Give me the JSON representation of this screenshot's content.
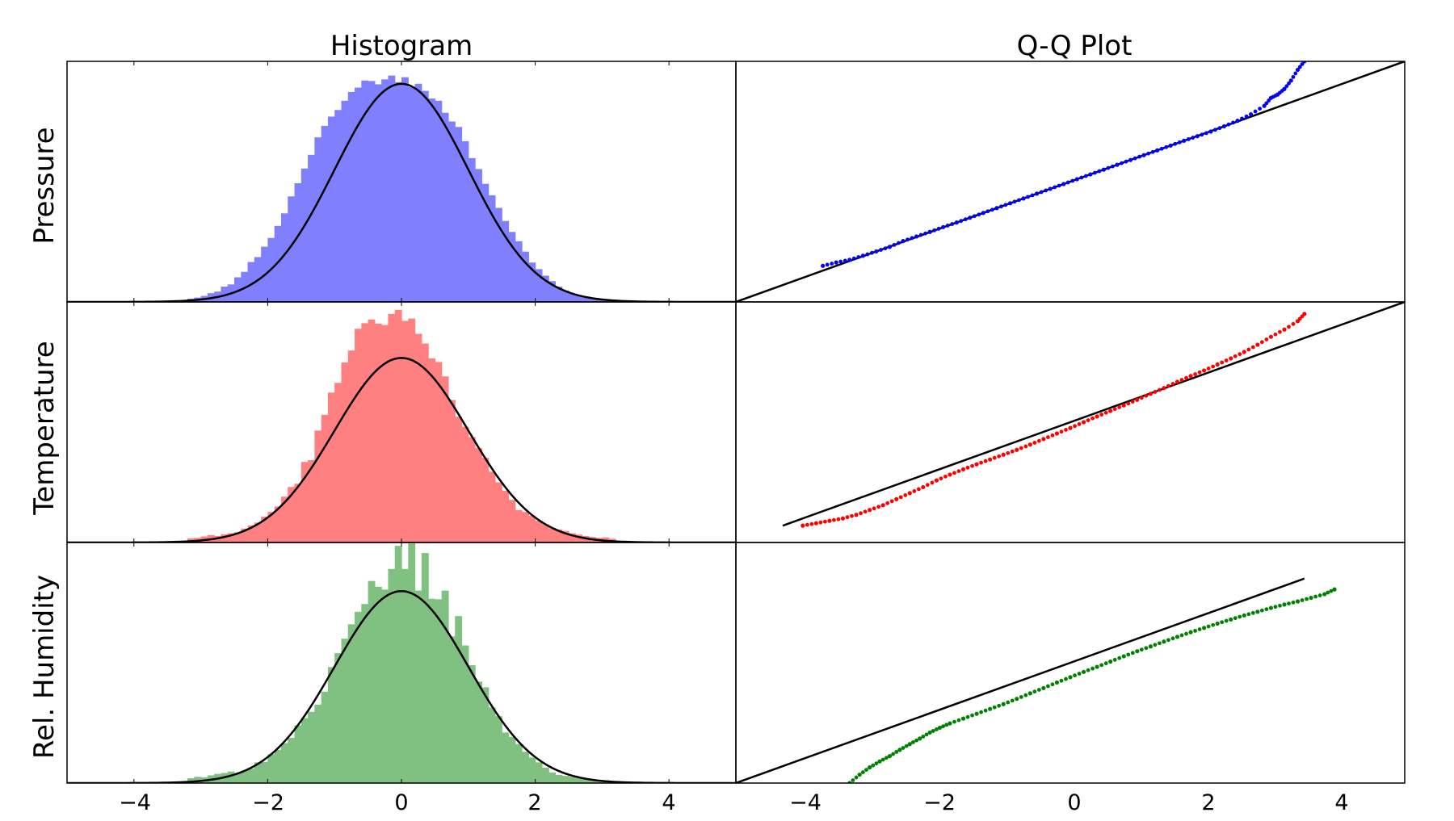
{
  "figure": {
    "column_titles": [
      "Histogram",
      "Q-Q Plot"
    ],
    "row_labels": [
      "Pressure",
      "Temperature",
      "Rel. Humidity"
    ],
    "x_tick_labels": [
      "−4",
      "−2",
      "0",
      "2",
      "4"
    ]
  },
  "chart_data": [
    {
      "type": "histogram",
      "panel": "Pressure / Histogram",
      "color": "#8080ff",
      "xlim": [
        -5,
        5
      ],
      "xticks": [
        -4,
        -2,
        0,
        2,
        4
      ],
      "bin_centers": [
        -3.15,
        -3.05,
        -2.95,
        -2.85,
        -2.75,
        -2.65,
        -2.55,
        -2.45,
        -2.35,
        -2.25,
        -2.15,
        -2.05,
        -1.95,
        -1.85,
        -1.75,
        -1.65,
        -1.55,
        -1.45,
        -1.35,
        -1.25,
        -1.15,
        -1.05,
        -0.95,
        -0.85,
        -0.75,
        -0.65,
        -0.55,
        -0.45,
        -0.35,
        -0.25,
        -0.15,
        -0.05,
        0.05,
        0.15,
        0.25,
        0.35,
        0.45,
        0.55,
        0.65,
        0.75,
        0.85,
        0.95,
        1.05,
        1.15,
        1.25,
        1.35,
        1.45,
        1.55,
        1.65,
        1.75,
        1.85,
        1.95,
        2.05,
        2.15,
        2.25,
        2.35,
        2.45,
        2.55,
        2.65,
        2.75,
        2.85,
        2.95,
        3.05,
        3.15
      ],
      "density": [
        0.006,
        0.008,
        0.011,
        0.016,
        0.019,
        0.028,
        0.032,
        0.045,
        0.055,
        0.073,
        0.082,
        0.101,
        0.117,
        0.139,
        0.162,
        0.193,
        0.217,
        0.244,
        0.269,
        0.301,
        0.322,
        0.339,
        0.351,
        0.368,
        0.384,
        0.392,
        0.405,
        0.404,
        0.398,
        0.407,
        0.414,
        0.402,
        0.411,
        0.393,
        0.399,
        0.386,
        0.372,
        0.368,
        0.346,
        0.33,
        0.32,
        0.294,
        0.263,
        0.243,
        0.216,
        0.195,
        0.172,
        0.148,
        0.128,
        0.111,
        0.092,
        0.072,
        0.06,
        0.048,
        0.038,
        0.028,
        0.021,
        0.015,
        0.012,
        0.008,
        0.006,
        0.004,
        0.003,
        0.002
      ],
      "ylim": [
        0,
        0.44
      ],
      "curve": "standard normal pdf"
    },
    {
      "type": "scatter",
      "panel": "Pressure / Q-Q Plot",
      "color": "#0000ff",
      "xlim": [
        -5,
        5
      ],
      "ylim": [
        -5,
        5
      ],
      "theoretical_quantiles": [
        -3.7,
        -3.5,
        -3.3,
        -3.1,
        -2.9,
        -2.7,
        -2.5,
        -2.3,
        -2.1,
        -1.9,
        -1.7,
        -1.5,
        -1.3,
        -1.1,
        -0.9,
        -0.7,
        -0.5,
        -0.3,
        -0.1,
        0.1,
        0.3,
        0.5,
        0.7,
        0.9,
        1.1,
        1.3,
        1.5,
        1.7,
        1.9,
        2.1,
        2.3,
        2.5,
        2.7,
        2.9,
        3.0,
        3.1,
        3.2,
        3.3,
        3.4,
        3.5
      ],
      "sample_quantiles": [
        -3.5,
        -3.36,
        -3.25,
        -3.08,
        -2.9,
        -2.71,
        -2.47,
        -2.28,
        -2.09,
        -1.89,
        -1.7,
        -1.5,
        -1.3,
        -1.1,
        -0.9,
        -0.7,
        -0.5,
        -0.3,
        -0.1,
        0.1,
        0.3,
        0.5,
        0.7,
        0.9,
        1.1,
        1.3,
        1.5,
        1.7,
        1.89,
        2.08,
        2.3,
        2.53,
        2.8,
        3.15,
        3.48,
        3.62,
        3.85,
        4.2,
        4.65,
        5.0
      ],
      "reference_line": {
        "x": [
          -5,
          5
        ],
        "y": [
          -5,
          5
        ]
      }
    },
    {
      "type": "histogram",
      "panel": "Temperature / Histogram",
      "color": "#ff8080",
      "xlim": [
        -5,
        5
      ],
      "xticks": [
        -4,
        -2,
        0,
        2,
        4
      ],
      "bin_centers": [
        -3.15,
        -3.05,
        -2.95,
        -2.85,
        -2.75,
        -2.65,
        -2.55,
        -2.45,
        -2.35,
        -2.25,
        -2.15,
        -2.05,
        -1.95,
        -1.85,
        -1.75,
        -1.65,
        -1.55,
        -1.45,
        -1.35,
        -1.25,
        -1.15,
        -1.05,
        -0.95,
        -0.85,
        -0.75,
        -0.65,
        -0.55,
        -0.45,
        -0.35,
        -0.25,
        -0.15,
        -0.05,
        0.05,
        0.15,
        0.25,
        0.35,
        0.45,
        0.55,
        0.65,
        0.75,
        0.85,
        0.95,
        1.05,
        1.15,
        1.25,
        1.35,
        1.45,
        1.55,
        1.65,
        1.75,
        1.85,
        1.95,
        2.05,
        2.15,
        2.25,
        2.35,
        2.45,
        2.55,
        2.65,
        2.75,
        2.85,
        2.95,
        3.05,
        3.15
      ],
      "density": [
        0.009,
        0.01,
        0.013,
        0.016,
        0.014,
        0.018,
        0.02,
        0.022,
        0.03,
        0.037,
        0.043,
        0.056,
        0.066,
        0.078,
        0.099,
        0.12,
        0.127,
        0.174,
        0.178,
        0.242,
        0.276,
        0.324,
        0.345,
        0.389,
        0.415,
        0.462,
        0.474,
        0.482,
        0.473,
        0.47,
        0.494,
        0.503,
        0.479,
        0.484,
        0.451,
        0.43,
        0.398,
        0.39,
        0.359,
        0.308,
        0.272,
        0.25,
        0.228,
        0.204,
        0.183,
        0.153,
        0.13,
        0.112,
        0.092,
        0.07,
        0.066,
        0.058,
        0.047,
        0.039,
        0.031,
        0.028,
        0.025,
        0.02,
        0.017,
        0.014,
        0.012,
        0.01,
        0.011,
        0.008
      ],
      "ylim": [
        0,
        0.52
      ],
      "curve": "standard normal pdf"
    },
    {
      "type": "scatter",
      "panel": "Temperature / Q-Q Plot",
      "color": "#ff0000",
      "xlim": [
        -5,
        5
      ],
      "ylim": [
        -5,
        5
      ],
      "theoretical_quantiles": [
        -4.0,
        -3.8,
        -3.6,
        -3.4,
        -3.2,
        -3.0,
        -2.8,
        -2.6,
        -2.4,
        -2.2,
        -2.0,
        -1.8,
        -1.6,
        -1.4,
        -1.2,
        -1.0,
        -0.8,
        -0.6,
        -0.4,
        -0.2,
        0.0,
        0.2,
        0.4,
        0.6,
        0.8,
        1.0,
        1.2,
        1.4,
        1.6,
        1.8,
        2.0,
        2.2,
        2.4,
        2.6,
        2.8,
        3.0,
        3.2,
        3.4,
        3.5
      ],
      "sample_quantiles": [
        -4.3,
        -4.2,
        -4.1,
        -4.0,
        -3.85,
        -3.65,
        -3.45,
        -3.2,
        -2.95,
        -2.7,
        -2.42,
        -2.18,
        -1.96,
        -1.75,
        -1.55,
        -1.35,
        -1.15,
        -0.93,
        -0.7,
        -0.47,
        -0.24,
        0.0,
        0.24,
        0.47,
        0.7,
        0.93,
        1.18,
        1.42,
        1.68,
        1.92,
        2.15,
        2.4,
        2.65,
        2.92,
        3.22,
        3.55,
        3.85,
        4.2,
        4.5
      ],
      "reference_line": {
        "x": [
          -4.3,
          5
        ],
        "y": [
          -4.3,
          5
        ]
      }
    },
    {
      "type": "histogram",
      "panel": "Rel. Humidity / Histogram",
      "color": "#80c080",
      "xlim": [
        -5,
        5
      ],
      "xticks": [
        -4,
        -2,
        0,
        2,
        4
      ],
      "bin_centers": [
        -3.15,
        -3.05,
        -2.95,
        -2.85,
        -2.75,
        -2.65,
        -2.55,
        -2.45,
        -2.35,
        -2.25,
        -2.15,
        -2.05,
        -1.95,
        -1.85,
        -1.75,
        -1.65,
        -1.55,
        -1.45,
        -1.35,
        -1.25,
        -1.15,
        -1.05,
        -0.95,
        -0.85,
        -0.75,
        -0.65,
        -0.55,
        -0.45,
        -0.35,
        -0.25,
        -0.15,
        -0.05,
        0.05,
        0.15,
        0.25,
        0.35,
        0.45,
        0.55,
        0.65,
        0.75,
        0.85,
        0.95,
        1.05,
        1.15,
        1.25,
        1.35,
        1.45,
        1.55,
        1.65,
        1.75,
        1.85,
        1.95,
        2.05,
        2.15,
        2.25,
        2.35,
        2.45,
        2.55,
        2.65,
        2.75,
        2.85,
        2.95,
        3.05,
        3.15
      ],
      "density": [
        0.01,
        0.013,
        0.012,
        0.016,
        0.019,
        0.021,
        0.024,
        0.02,
        0.026,
        0.03,
        0.043,
        0.044,
        0.06,
        0.069,
        0.083,
        0.094,
        0.12,
        0.135,
        0.148,
        0.163,
        0.19,
        0.241,
        0.27,
        0.3,
        0.33,
        0.356,
        0.372,
        0.42,
        0.408,
        0.402,
        0.445,
        0.493,
        0.445,
        0.498,
        0.4,
        0.478,
        0.383,
        0.382,
        0.4,
        0.305,
        0.347,
        0.286,
        0.245,
        0.211,
        0.199,
        0.157,
        0.139,
        0.105,
        0.096,
        0.081,
        0.065,
        0.053,
        0.043,
        0.032,
        0.022,
        0.017,
        0.015,
        0.013,
        0.01,
        0.01,
        0.008,
        0.006,
        0.005,
        0.004
      ],
      "ylim": [
        0,
        0.5
      ],
      "curve": "standard normal pdf"
    },
    {
      "type": "scatter",
      "panel": "Rel. Humidity / Q-Q Plot",
      "color": "#008000",
      "xlim": [
        -5,
        5
      ],
      "ylim": [
        -5,
        5
      ],
      "theoretical_quantiles": [
        -3.3,
        -3.15,
        -3.0,
        -2.85,
        -2.7,
        -2.55,
        -2.4,
        -2.25,
        -2.1,
        -1.95,
        -1.8,
        -1.6,
        -1.4,
        -1.2,
        -1.0,
        -0.8,
        -0.6,
        -0.4,
        -0.2,
        0.0,
        0.2,
        0.4,
        0.6,
        0.8,
        1.0,
        1.2,
        1.4,
        1.6,
        1.8,
        2.0,
        2.2,
        2.4,
        2.6,
        2.8,
        3.0,
        3.2,
        3.4,
        3.6,
        3.8,
        3.95
      ],
      "sample_quantiles": [
        -5.0,
        -4.65,
        -4.35,
        -4.1,
        -3.88,
        -3.62,
        -3.38,
        -3.15,
        -2.9,
        -2.7,
        -2.52,
        -2.32,
        -2.12,
        -1.92,
        -1.72,
        -1.5,
        -1.27,
        -1.05,
        -0.82,
        -0.6,
        -0.38,
        -0.17,
        0.05,
        0.27,
        0.48,
        0.68,
        0.88,
        1.08,
        1.27,
        1.45,
        1.63,
        1.8,
        1.97,
        2.12,
        2.28,
        2.42,
        2.55,
        2.7,
        2.85,
        3.05
      ],
      "reference_line": {
        "x": [
          -5,
          3.5
        ],
        "y": [
          -5,
          3.5
        ]
      }
    }
  ]
}
